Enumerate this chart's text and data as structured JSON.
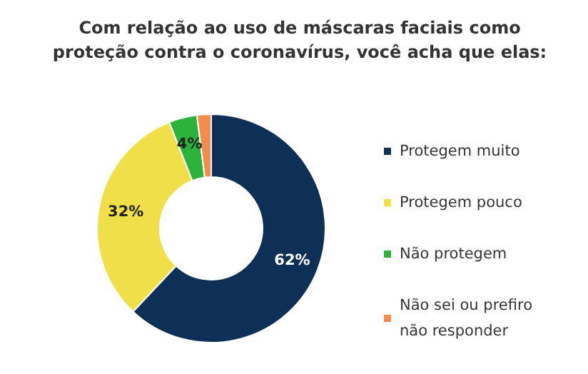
{
  "chart_data": {
    "type": "donut",
    "title": "Com relação ao uso de máscaras faciais como\nproteção contra o coronavírus, você acha que elas:",
    "categories": [
      "Protegem muito",
      "Protegem pouco",
      "Não protegem",
      "Não sei ou prefiro não responder"
    ],
    "values": [
      62,
      32,
      4,
      2
    ],
    "colors": [
      "#0e3056",
      "#f0df48",
      "#2db23b",
      "#f28d4d"
    ],
    "value_labels": [
      "62%",
      "32%",
      "4%",
      null
    ],
    "legend": "right"
  }
}
